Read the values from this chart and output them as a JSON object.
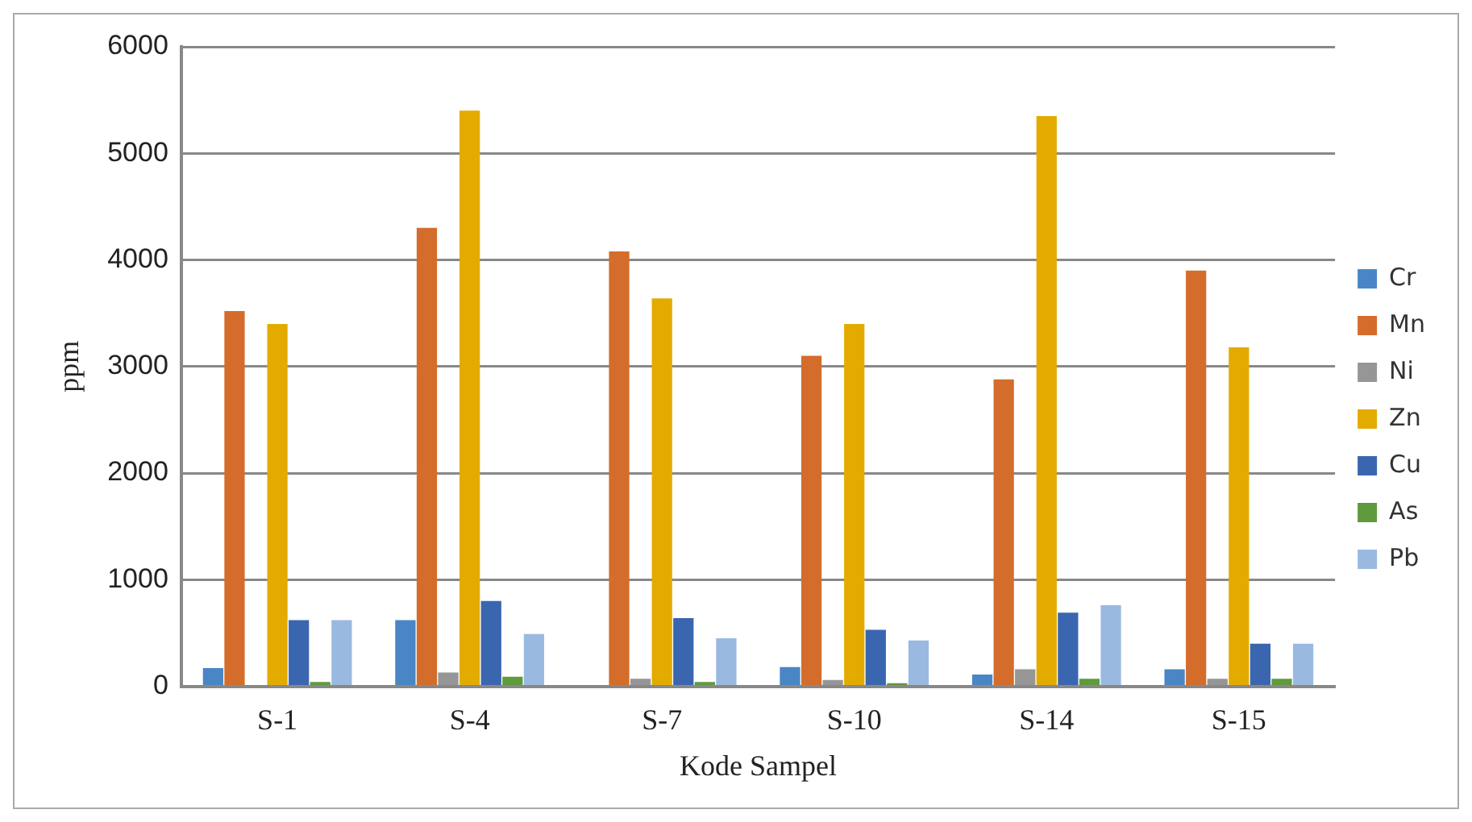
{
  "chart_data": {
    "type": "bar",
    "xlabel": "Kode Sampel",
    "ylabel": "ppm",
    "categories": [
      "S-1",
      "S-4",
      "S-7",
      "S-10",
      "S-14",
      "S-15"
    ],
    "series": [
      {
        "name": "Cr",
        "color": "#4a86c5",
        "values": [
          170,
          620,
          0,
          180,
          110,
          160
        ]
      },
      {
        "name": "Mn",
        "color": "#d46d2b",
        "values": [
          3520,
          4300,
          4080,
          3100,
          2880,
          3900
        ]
      },
      {
        "name": "Ni",
        "color": "#969696",
        "values": [
          0,
          130,
          70,
          60,
          160,
          70
        ]
      },
      {
        "name": "Zn",
        "color": "#e3ab00",
        "values": [
          3400,
          5400,
          3640,
          3400,
          5350,
          3180
        ]
      },
      {
        "name": "Cu",
        "color": "#3a66b0",
        "values": [
          620,
          800,
          640,
          530,
          690,
          400
        ]
      },
      {
        "name": "As",
        "color": "#5f9a3c",
        "values": [
          40,
          90,
          40,
          30,
          70,
          70
        ]
      },
      {
        "name": "Pb",
        "color": "#99b9e0",
        "values": [
          620,
          490,
          450,
          430,
          760,
          400
        ]
      }
    ],
    "ylim": [
      0,
      6000
    ],
    "yticks": [
      0,
      1000,
      2000,
      3000,
      4000,
      5000,
      6000
    ],
    "grid": "y",
    "legend": "right"
  }
}
